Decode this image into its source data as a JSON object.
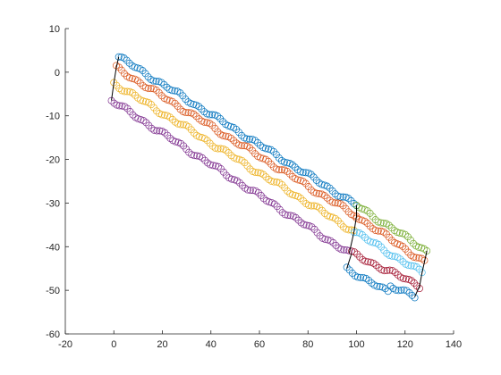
{
  "chart_data": {
    "type": "scatter",
    "title": "",
    "xlabel": "",
    "ylabel": "",
    "xlim": [
      -20,
      140
    ],
    "ylim": [
      -60,
      10
    ],
    "xticks": [
      -20,
      0,
      20,
      40,
      60,
      80,
      100,
      120,
      140
    ],
    "yticks": [
      -60,
      -50,
      -40,
      -30,
      -20,
      -10,
      0,
      10
    ],
    "grid": false,
    "marker": "circle",
    "series": [
      {
        "color": "#0072BD",
        "x": [
          2,
          100
        ],
        "y": [
          3.5,
          -30.5
        ]
      },
      {
        "color": "#D95319",
        "x": [
          1,
          100
        ],
        "y": [
          1,
          -33
        ]
      },
      {
        "color": "#EDB120",
        "x": [
          0,
          99
        ],
        "y": [
          -2.5,
          -36.5
        ]
      },
      {
        "color": "#7E2F8E",
        "x": [
          -1,
          97
        ],
        "y": [
          -6.5,
          -41.5
        ]
      },
      {
        "color": "#77AC30",
        "x": [
          100,
          129
        ],
        "y": [
          -30.5,
          -41
        ]
      },
      {
        "color": "#D95319",
        "x": [
          100,
          128
        ],
        "y": [
          -33,
          -43.5
        ]
      },
      {
        "color": "#4DBEEE",
        "x": [
          99,
          127
        ],
        "y": [
          -36.5,
          -46
        ]
      },
      {
        "color": "#A2142F",
        "x": [
          98,
          126
        ],
        "y": [
          -41.5,
          -49
        ]
      },
      {
        "color": "#0072BD",
        "x": [
          96,
          113
        ],
        "y": [
          -45,
          -50.5
        ]
      },
      {
        "color": "#0072BD",
        "x": [
          114,
          124
        ],
        "y": [
          -49,
          -51.5
        ]
      }
    ],
    "guide_lines": [
      {
        "x": [
          2,
          1,
          0,
          -1
        ],
        "y": [
          3.5,
          1,
          -2.5,
          -6.5
        ]
      },
      {
        "x": [
          100,
          100,
          99,
          97
        ],
        "y": [
          -30.5,
          -33,
          -36.5,
          -41.5
        ]
      },
      {
        "x": [
          129,
          128,
          127,
          126,
          124
        ],
        "y": [
          -41,
          -43.5,
          -46,
          -49,
          -51.5
        ]
      },
      {
        "x": [
          98,
          96
        ],
        "y": [
          -41.5,
          -45
        ]
      }
    ]
  }
}
